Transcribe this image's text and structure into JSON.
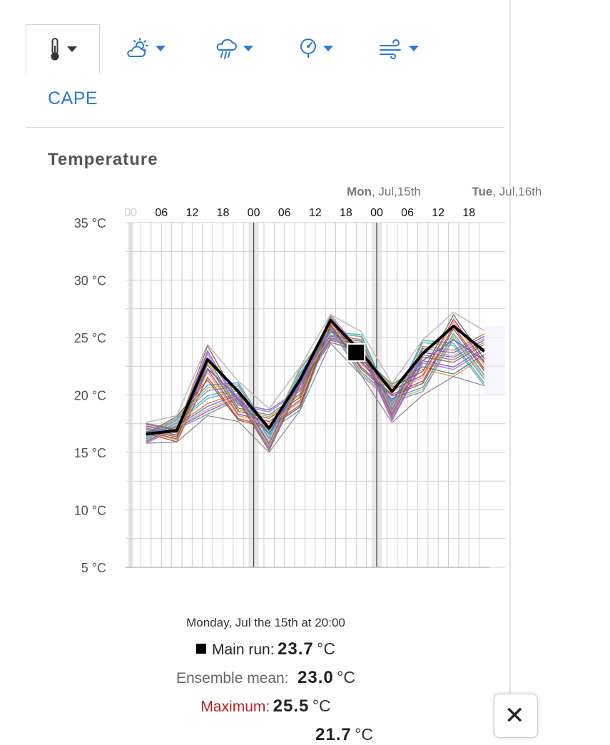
{
  "tabs": [
    {
      "name": "temperature",
      "icon": "thermometer-icon",
      "active": true
    },
    {
      "name": "sun-cloud",
      "icon": "sun-cloud-icon",
      "active": false
    },
    {
      "name": "precipitation",
      "icon": "rain-cloud-icon",
      "active": false
    },
    {
      "name": "pressure",
      "icon": "gauge-icon",
      "active": false
    },
    {
      "name": "wind",
      "icon": "wind-icon",
      "active": false
    }
  ],
  "subnav": {
    "cape_label": "CAPE"
  },
  "section": {
    "title": "Temperature"
  },
  "chart_data": {
    "type": "line",
    "day_labels": [
      {
        "bold": "Mon",
        "rest": ", Jul,15th",
        "at": 48
      },
      {
        "bold": "Tue",
        "rest": ", Jul,16th",
        "at": 72
      }
    ],
    "x_ticks": [
      {
        "label": "00",
        "at": 0,
        "faded": true
      },
      {
        "label": "06",
        "at": 6
      },
      {
        "label": "12",
        "at": 12
      },
      {
        "label": "18",
        "at": 18
      },
      {
        "label": "00",
        "at": 24
      },
      {
        "label": "06",
        "at": 30
      },
      {
        "label": "12",
        "at": 36
      },
      {
        "label": "18",
        "at": 42
      },
      {
        "label": "00",
        "at": 48
      },
      {
        "label": "06",
        "at": 54
      },
      {
        "label": "12",
        "at": 60
      },
      {
        "label": "18",
        "at": 66
      }
    ],
    "y_ticks": [
      "35 °C",
      "30 °C",
      "25 °C",
      "20 °C",
      "15 °C",
      "10 °C",
      "5 °C"
    ],
    "ylim": [
      5,
      35
    ],
    "x_hours": [
      3,
      9,
      15,
      21,
      27,
      33,
      39,
      45,
      51,
      57,
      63,
      69
    ],
    "main_run": [
      16.6,
      16.9,
      23.1,
      20.3,
      17.1,
      21.3,
      26.5,
      23.7,
      20.3,
      23.6,
      26.0,
      23.8
    ],
    "ensemble_mean": [
      16.8,
      17.0,
      22.3,
      19.7,
      16.6,
      21.0,
      25.7,
      23.0,
      19.5,
      23.0,
      24.8,
      23.0
    ],
    "ensemble_max": [
      17.6,
      18.2,
      24.4,
      21.2,
      18.8,
      22.4,
      27.0,
      25.5,
      21.0,
      24.8,
      27.2,
      25.6
    ],
    "ensemble_min": [
      15.8,
      15.9,
      18.2,
      17.7,
      15.0,
      18.6,
      24.5,
      21.7,
      17.6,
      20.0,
      21.6,
      20.8
    ],
    "selected": {
      "hour": 44,
      "value": 23.7
    },
    "colors": {
      "main": "#000000",
      "max": "#b22222",
      "min": "#2b5ca8",
      "night_band": "#e8e8e8",
      "grid": "#cfcfcf"
    }
  },
  "readout": {
    "datetime": "Monday, Jul the 15th at 20:00",
    "main_label": "Main run:",
    "main_value": "23.7",
    "mean_label": "Ensemble mean:",
    "mean_value": "23.0",
    "max_label": "Maximum:",
    "max_value": "25.5",
    "min_value": "21.7",
    "unit": "°C"
  }
}
